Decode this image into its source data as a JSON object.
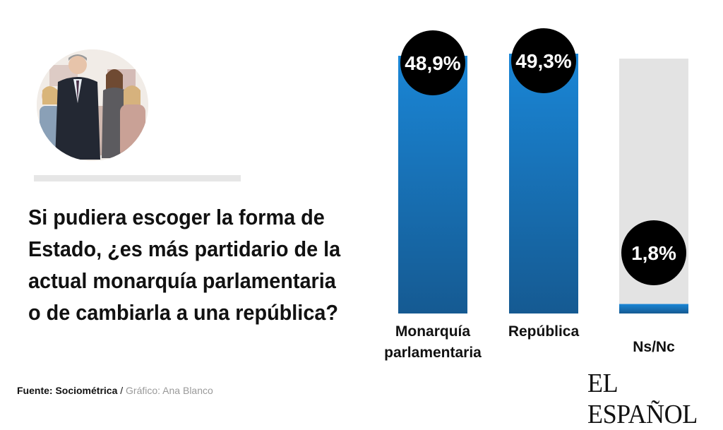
{
  "question": "Si pudiera escoger la forma de\nEstado, ¿es más partidario de la\nactual monarquía parlamentaria\no de cambiarla a una república?",
  "source": {
    "label": "Fuente: Sociométrica",
    "separator": " / ",
    "credit": "Gráfico: Ana Blanco"
  },
  "logo": "EL ESPAÑOL",
  "colors": {
    "bar_top": "#1a86d6",
    "bar_bottom": "#155a92",
    "bar_track": "#e3e3e3",
    "bubble": "#000000",
    "bubble_text": "#ffffff"
  },
  "chart_data": {
    "type": "bar",
    "categories": [
      "Monarquía parlamentaria",
      "República",
      "Ns/Nc"
    ],
    "category_labels": [
      [
        "Monarquía",
        "parlamentaria"
      ],
      [
        "República"
      ],
      [
        "Ns/Nc"
      ]
    ],
    "values": [
      48.9,
      49.3,
      1.8
    ],
    "data_labels": [
      "48,9%",
      "49,3%",
      "1,8%"
    ],
    "title": "",
    "xlabel": "",
    "ylabel": ""
  }
}
